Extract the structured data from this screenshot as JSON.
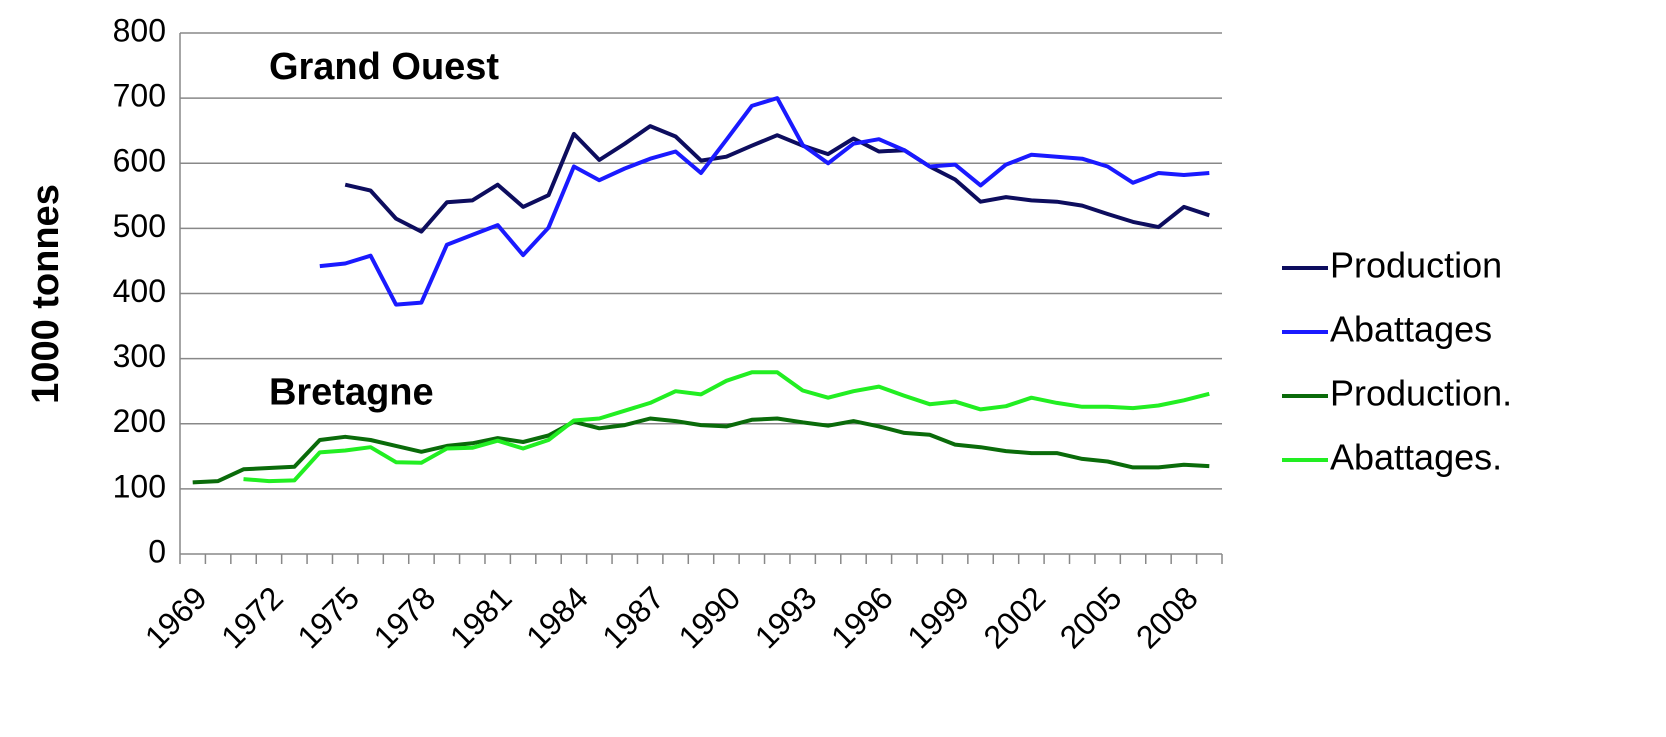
{
  "chart_data": {
    "type": "line",
    "ylabel": "1000 tonnes",
    "annotations": [
      {
        "text": "Grand Ouest",
        "color": "#1a1aff",
        "x": 1972,
        "y": 745
      },
      {
        "text": "Bretagne",
        "color": "#22ee22",
        "x": 1972,
        "y": 245
      }
    ],
    "categories": [
      "1969",
      null,
      null,
      "1972",
      null,
      null,
      "1975",
      null,
      null,
      "1978",
      null,
      null,
      "1981",
      null,
      null,
      "1984",
      null,
      null,
      "1987",
      null,
      null,
      "1990",
      null,
      null,
      "1993",
      null,
      null,
      "1996",
      null,
      null,
      "1999",
      null,
      null,
      "2002",
      null,
      null,
      "2005",
      null,
      null,
      "2008",
      null
    ],
    "series": [
      {
        "name": "Production",
        "color": "#0d0d5e",
        "values": [
          null,
          null,
          null,
          null,
          null,
          null,
          567,
          558,
          515,
          495,
          540,
          543,
          567,
          533,
          551,
          645,
          605,
          630,
          657,
          641,
          604,
          610,
          627,
          643,
          627,
          614,
          638,
          618,
          620,
          595,
          575,
          541,
          548,
          543,
          541,
          535,
          522,
          510,
          502,
          533,
          520
        ]
      },
      {
        "name": "Abattages",
        "color": "#1a1aff",
        "values": [
          null,
          null,
          null,
          null,
          null,
          442,
          446,
          458,
          383,
          386,
          475,
          490,
          505,
          459,
          501,
          595,
          574,
          592,
          607,
          618,
          585,
          636,
          688,
          700,
          628,
          600,
          630,
          637,
          620,
          595,
          598,
          566,
          598,
          613,
          610,
          607,
          595,
          570,
          585,
          582,
          585
        ]
      },
      {
        "name": "Production.",
        "color": "#0a6b0a",
        "values": [
          110,
          112,
          130,
          132,
          134,
          175,
          180,
          175,
          166,
          157,
          166,
          170,
          178,
          172,
          182,
          203,
          193,
          198,
          208,
          204,
          198,
          196,
          206,
          208,
          202,
          197,
          204,
          196,
          186,
          183,
          168,
          164,
          158,
          155,
          155,
          146,
          142,
          133,
          133,
          137,
          135
        ]
      },
      {
        "name": "Abattages.",
        "color": "#22ee22",
        "values": [
          null,
          null,
          115,
          112,
          113,
          156,
          159,
          164,
          141,
          140,
          162,
          163,
          174,
          162,
          175,
          205,
          208,
          220,
          232,
          250,
          245,
          266,
          279,
          279,
          251,
          240,
          250,
          257,
          243,
          230,
          234,
          222,
          227,
          240,
          232,
          226,
          226,
          224,
          228,
          236,
          246
        ]
      }
    ],
    "ylim": [
      0,
      800
    ],
    "yticks": [
      0,
      100,
      200,
      300,
      400,
      500,
      600,
      700,
      800
    ],
    "grid": true,
    "legend": "right"
  }
}
